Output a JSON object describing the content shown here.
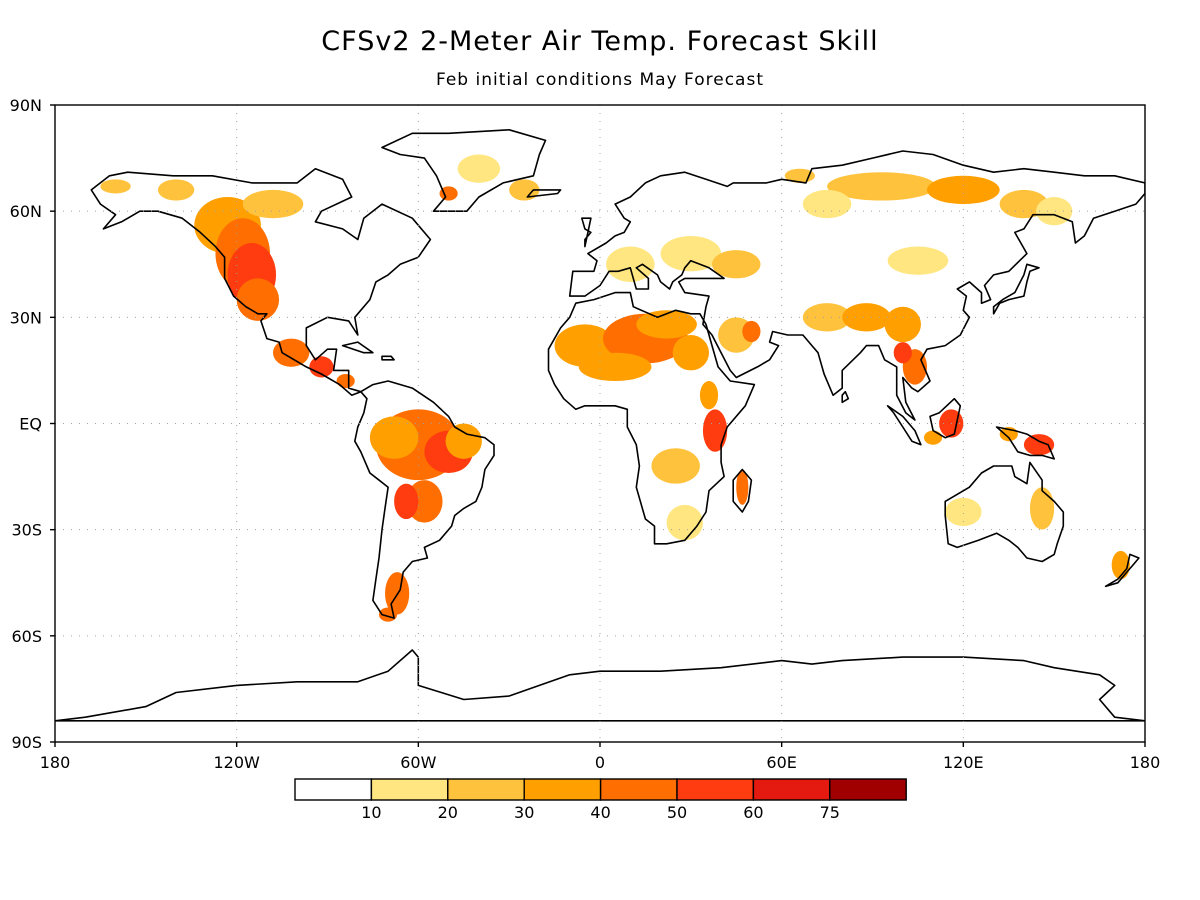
{
  "figure": {
    "title": "CFSv2 2-Meter Air Temp. Forecast Skill",
    "subtitle": "Feb initial conditions   May Forecast"
  },
  "map": {
    "projection": "equirectangular",
    "lon_range": [
      -180,
      180
    ],
    "lat_range": [
      -90,
      90
    ],
    "lat_tick_labels": [
      {
        "lat": 90,
        "label": "90N"
      },
      {
        "lat": 60,
        "label": "60N"
      },
      {
        "lat": 30,
        "label": "30N"
      },
      {
        "lat": 0,
        "label": "EQ"
      },
      {
        "lat": -30,
        "label": "30S"
      },
      {
        "lat": -60,
        "label": "60S"
      },
      {
        "lat": -90,
        "label": "90S"
      }
    ],
    "lon_tick_labels": [
      {
        "lon": -180,
        "label": "180"
      },
      {
        "lon": -120,
        "label": "120W"
      },
      {
        "lon": -60,
        "label": "60W"
      },
      {
        "lon": 0,
        "label": "0"
      },
      {
        "lon": 60,
        "label": "60E"
      },
      {
        "lon": 120,
        "label": "120E"
      },
      {
        "lon": 180,
        "label": "180"
      }
    ],
    "grid": "dotted at 30 degree intervals"
  },
  "legend": {
    "colors": [
      "#ffffff",
      "#ffe680",
      "#ffc23c",
      "#ffa000",
      "#ff6e00",
      "#ff3c10",
      "#e41a10",
      "#a00000"
    ],
    "labels": [
      "10",
      "20",
      "30",
      "40",
      "50",
      "60",
      "75"
    ]
  }
}
